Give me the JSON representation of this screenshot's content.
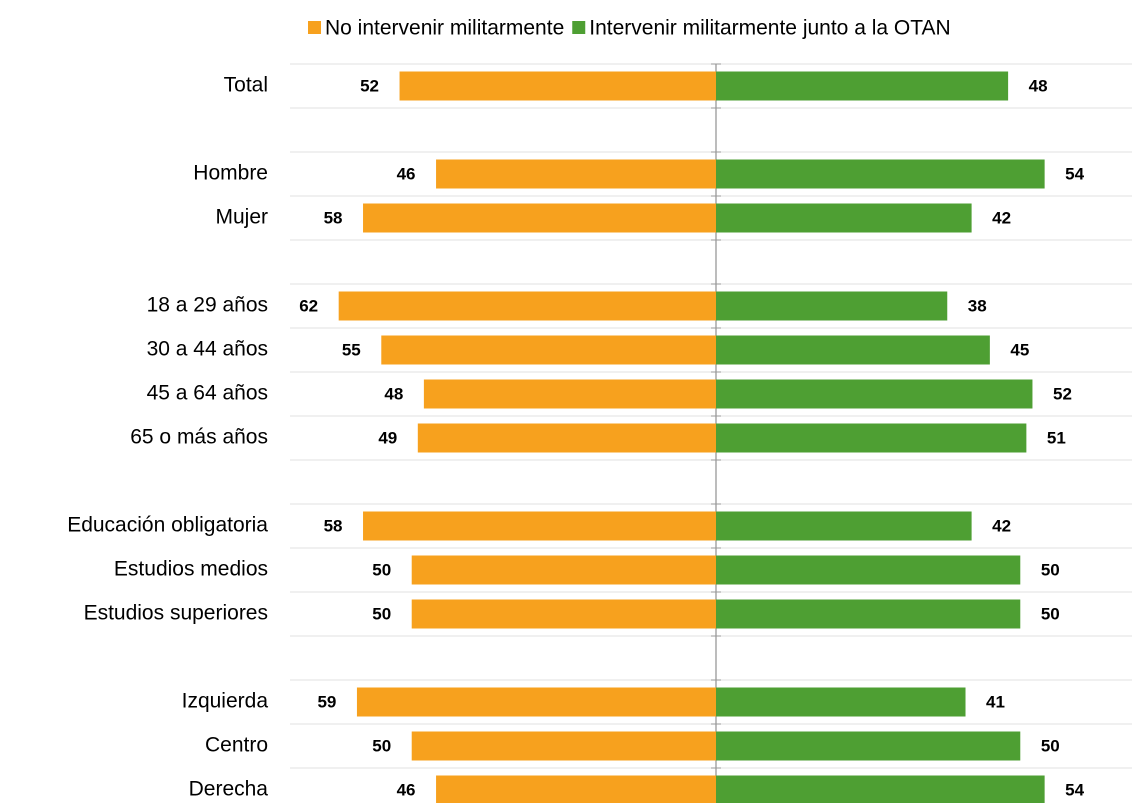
{
  "chart_data": {
    "type": "diverging_bar",
    "categories": [
      "Total",
      null,
      "Hombre",
      "Mujer",
      null,
      "18 a 29 años",
      "30 a 44 años",
      "45 a 64 años",
      "65 o más años",
      null,
      "Educación obligatoria",
      "Estudios medios",
      "Estudios superiores",
      null,
      "Izquierda",
      "Centro",
      "Derecha"
    ],
    "series": [
      {
        "name": "No intervenir militarmente",
        "color": "#f7a11e",
        "values": [
          52,
          null,
          46,
          58,
          null,
          62,
          55,
          48,
          49,
          null,
          58,
          50,
          50,
          null,
          59,
          50,
          46
        ]
      },
      {
        "name": "Intervenir militarmente junto a la OTAN",
        "color": "#4e9f33",
        "values": [
          48,
          null,
          54,
          42,
          null,
          38,
          45,
          52,
          51,
          null,
          42,
          50,
          50,
          null,
          41,
          50,
          54
        ]
      }
    ],
    "xlim": [
      -70,
      70
    ],
    "legend": "top"
  }
}
